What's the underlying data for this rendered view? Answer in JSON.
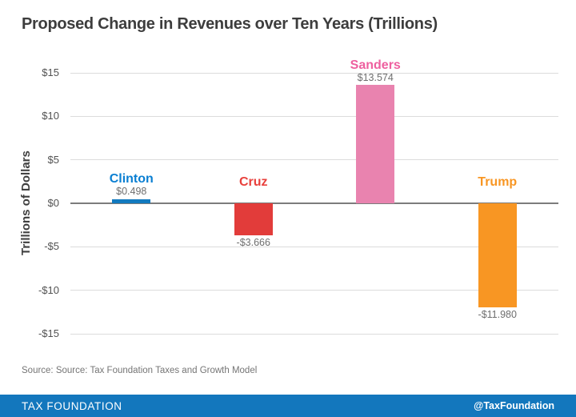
{
  "chart_data": {
    "type": "bar",
    "title": "Proposed Change in Revenues over Ten Years (Trillions)",
    "ylabel": "Trillions of Dollars",
    "categories": [
      "Clinton",
      "Cruz",
      "Sanders",
      "Trump"
    ],
    "values": [
      0.498,
      -3.666,
      13.574,
      -11.98
    ],
    "value_labels": [
      "$0.498",
      "-$3.666",
      "$13.574",
      "-$11.980"
    ],
    "bar_colors": [
      "#127abf",
      "#e23c3a",
      "#e983af",
      "#f89623"
    ],
    "label_colors": [
      "#0a7fd2",
      "#e8403c",
      "#ee5f9f",
      "#f89623"
    ],
    "ylim": [
      -15,
      15
    ],
    "ytick_step": 5,
    "ytick_labels": [
      "$15",
      "$10",
      "$5",
      "$0",
      "-$5",
      "-$10",
      "-$15"
    ],
    "grid": true,
    "legend": false,
    "zero_line_color": "#7c7c7c",
    "gridline_color": "#dcdcdc",
    "value_text_color": "#6e6e6e"
  },
  "source_note": "Source: Source: Tax Foundation Taxes and Growth Model",
  "footer": {
    "brand": "TAX FOUNDATION",
    "handle": "@TaxFoundation",
    "bar_color": "#1377bd"
  }
}
